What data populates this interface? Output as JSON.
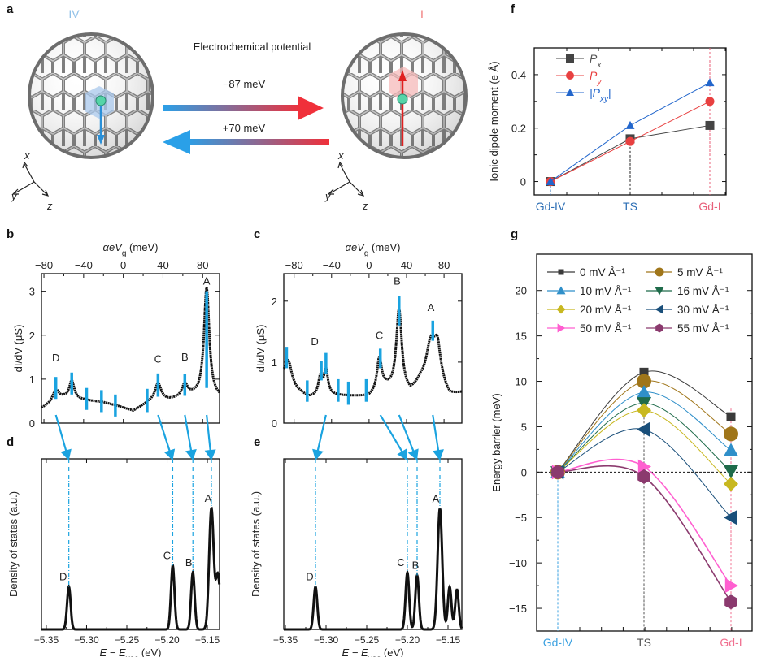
{
  "panel_labels": {
    "a": "a",
    "b": "b",
    "c": "c",
    "d": "d",
    "e": "e",
    "f": "f",
    "g": "g"
  },
  "panel_a": {
    "state_left": "IV",
    "state_right": "I",
    "title": "Electrochemical potential",
    "forward_label": "−87 meV",
    "backward_label": "+70 meV",
    "axis_x": "x",
    "axis_y": "y",
    "axis_z": "z",
    "colors": {
      "left_state": "#8fc0e8",
      "right_state": "#f07a7a",
      "forward_arrow_end": "#f0303a",
      "backward_arrow_end": "#2aa0e8"
    }
  },
  "chart_data": [
    {
      "panel": "b",
      "type": "line",
      "xlabel": {
        "main": "αeV",
        "sub": "g",
        "unit": " (meV)"
      },
      "ylabel": "dI/dV (μS)",
      "xticks": [
        -80,
        -40,
        0,
        40,
        80
      ],
      "xtick_labels": [
        "−80",
        "−40",
        "0",
        "40",
        "80"
      ],
      "yticks": [
        0,
        1,
        2,
        3
      ],
      "ytick_labels": [
        "0",
        "1",
        "2",
        "3"
      ],
      "xlim": [
        -82.5,
        97
      ],
      "ylim": [
        0,
        3.4
      ],
      "baseline": [
        [
          -82.5,
          0.33
        ],
        [
          -60,
          0.55
        ],
        [
          -40,
          0.52
        ],
        [
          -20,
          0.47
        ],
        [
          -5,
          0.38
        ],
        [
          10,
          0.27
        ],
        [
          25,
          0.45
        ],
        [
          45,
          0.5
        ],
        [
          70,
          0.6
        ],
        [
          97,
          0.55
        ]
      ],
      "peaks": [
        [
          -68,
          0.28,
          4
        ],
        [
          -52,
          0.42,
          3
        ],
        [
          35,
          0.42,
          4
        ],
        [
          62,
          0.3,
          3.5
        ],
        [
          84,
          2.5,
          3.2
        ]
      ],
      "markers": [
        [
          -68,
          0.55,
          1.05
        ],
        [
          -52,
          0.65,
          1.15
        ],
        [
          -37,
          0.3,
          0.8
        ],
        [
          -22,
          0.25,
          0.75
        ],
        [
          -8,
          0.15,
          0.65
        ],
        [
          24,
          0.25,
          0.78
        ],
        [
          35,
          0.6,
          1.13
        ],
        [
          62,
          0.62,
          1.12
        ],
        [
          84,
          0.8,
          3.0
        ]
      ],
      "peak_labels": [
        {
          "label": "D",
          "x": -68,
          "y": 1.4
        },
        {
          "label": "C",
          "x": 35,
          "y": 1.38
        },
        {
          "label": "B",
          "x": 62,
          "y": 1.42
        },
        {
          "label": "A",
          "x": 84,
          "y": 3.15
        }
      ]
    },
    {
      "panel": "c",
      "type": "line",
      "xlabel": {
        "main": "αeV",
        "sub": "g",
        "unit": " (meV)"
      },
      "ylabel": "dI/dV (μS)",
      "xticks": [
        -80,
        -40,
        0,
        40,
        80
      ],
      "xtick_labels": [
        "−80",
        "−40",
        "0",
        "40",
        "80"
      ],
      "yticks": [
        0,
        1,
        2
      ],
      "ytick_labels": [
        "0",
        "1",
        "2"
      ],
      "xlim": [
        -91,
        99
      ],
      "ylim": [
        0,
        2.45
      ],
      "baseline": [
        [
          -91,
          0.75
        ],
        [
          -78,
          0.55
        ],
        [
          -65,
          0.42
        ],
        [
          -40,
          0.45
        ],
        [
          0,
          0.42
        ],
        [
          18,
          0.55
        ],
        [
          44,
          0.45
        ],
        [
          55,
          0.62
        ],
        [
          78,
          0.55
        ],
        [
          86,
          0.42
        ],
        [
          99,
          0.48
        ]
      ],
      "peaks": [
        [
          -86,
          0.35,
          4
        ],
        [
          -52,
          0.3,
          2.5
        ],
        [
          -46,
          0.42,
          2.5
        ],
        [
          11,
          0.55,
          3
        ],
        [
          32,
          1.35,
          3.5
        ],
        [
          66,
          0.7,
          6
        ],
        [
          73,
          0.55,
          4
        ]
      ],
      "markers": [
        [
          -88,
          0.9,
          1.25
        ],
        [
          -66,
          0.35,
          0.7
        ],
        [
          -51,
          0.7,
          1.02
        ],
        [
          -46,
          0.8,
          1.15
        ],
        [
          -33,
          0.35,
          0.72
        ],
        [
          -22,
          0.3,
          0.68
        ],
        [
          -3,
          0.35,
          0.72
        ],
        [
          12,
          0.9,
          1.22
        ],
        [
          32,
          1.6,
          2.08
        ],
        [
          68,
          1.35,
          1.68
        ]
      ],
      "peak_labels": [
        {
          "label": "D",
          "x": -58,
          "y": 1.28
        },
        {
          "label": "C",
          "x": 11,
          "y": 1.38
        },
        {
          "label": "B",
          "x": 30,
          "y": 2.27
        },
        {
          "label": "A",
          "x": 66,
          "y": 1.84
        }
      ]
    },
    {
      "panel": "d",
      "type": "line",
      "xlabel": {
        "main": "E − E",
        "sub": "vac",
        "unit": " (eV)"
      },
      "ylabel": "Density of states (a.u.)",
      "xticks": [
        -5.35,
        -5.3,
        -5.25,
        -5.2,
        -5.15
      ],
      "xtick_labels": [
        "−5.35",
        "−5.30",
        "−5.25",
        "−5.20",
        "−5.15"
      ],
      "xlim": [
        -5.356,
        -5.1349
      ],
      "ylim": [
        0,
        1.2
      ],
      "peaks": [
        [
          -5.322,
          0.3,
          0.0022
        ],
        [
          -5.193,
          0.45,
          0.0022
        ],
        [
          -5.168,
          0.4,
          0.0022
        ],
        [
          -5.145,
          0.85,
          0.0028
        ],
        [
          -5.137,
          0.38,
          0.0025
        ],
        [
          -5.131,
          0.2,
          0.002
        ]
      ],
      "peak_labels": [
        {
          "label": "D",
          "x": -5.326
        },
        {
          "label": "C",
          "x": -5.197
        },
        {
          "label": "B",
          "x": -5.17
        },
        {
          "label": "A",
          "x": -5.146
        }
      ]
    },
    {
      "panel": "e",
      "type": "line",
      "xlabel": {
        "main": "E − E",
        "sub": "vac",
        "unit": " (eV)"
      },
      "ylabel": "Density of states (a.u.)",
      "xticks": [
        -5.35,
        -5.3,
        -5.25,
        -5.2,
        -5.15
      ],
      "xtick_labels": [
        "−5.35",
        "−5.30",
        "−5.25",
        "−5.20",
        "−5.15"
      ],
      "xlim": [
        -5.352,
        -5.133
      ],
      "ylim": [
        0,
        1.2
      ],
      "peaks": [
        [
          -5.313,
          0.3,
          0.0022
        ],
        [
          -5.2,
          0.4,
          0.0022
        ],
        [
          -5.188,
          0.38,
          0.0022
        ],
        [
          -5.16,
          0.85,
          0.0028
        ],
        [
          -5.148,
          0.3,
          0.0022
        ],
        [
          -5.139,
          0.28,
          0.0022
        ]
      ],
      "peak_labels": [
        {
          "label": "D",
          "x": -5.317
        },
        {
          "label": "C",
          "x": -5.205
        },
        {
          "label": "B",
          "x": -5.187
        },
        {
          "label": "A",
          "x": -5.162
        }
      ]
    },
    {
      "panel": "f",
      "type": "line",
      "categories": [
        "Gd-IV",
        "TS",
        "Gd-I"
      ],
      "category_colors": [
        "#2d6fb5",
        "#2d6fb5",
        "#e8607a"
      ],
      "ylabel": "Ionic dipole moment (e Å)",
      "yticks": [
        0,
        0.2,
        0.4
      ],
      "ytick_labels": [
        "0",
        "0.2",
        "0.4"
      ],
      "ylim": [
        -0.05,
        0.5
      ],
      "legend": "top-left",
      "series": [
        {
          "name": "P",
          "sub": "x",
          "marker": "square",
          "color": "#444444",
          "values": [
            0,
            0.16,
            0.21
          ]
        },
        {
          "name": "P",
          "sub": "y",
          "marker": "circle",
          "color": "#e84040",
          "values": [
            0,
            0.15,
            0.3
          ]
        },
        {
          "name": "|P",
          "sub": "xy",
          "suffix": "|",
          "marker": "triangle-up",
          "color": "#2266cc",
          "values": [
            0,
            0.21,
            0.37
          ]
        }
      ]
    },
    {
      "panel": "g",
      "type": "line",
      "categories": [
        "Gd-IV",
        "TS",
        "Gd-I"
      ],
      "category_colors": [
        "#3aa0e0",
        "#555555",
        "#f07090"
      ],
      "ylabel": "Energy barrier (meV)",
      "yticks": [
        -15,
        -10,
        -5,
        0,
        5,
        10,
        15,
        20
      ],
      "ytick_labels": [
        "−15",
        "−10",
        "−5",
        "0",
        "5",
        "10",
        "15",
        "20"
      ],
      "ylim": [
        -17.5,
        24
      ],
      "legend": "top",
      "series": [
        {
          "name": "0 mV Å⁻¹",
          "marker": "square",
          "color": "#3a3a3a",
          "values": [
            0,
            11,
            6.1
          ]
        },
        {
          "name": "5 mV Å⁻¹",
          "marker": "circle",
          "color": "#a0761a",
          "values": [
            0,
            10,
            4.2
          ]
        },
        {
          "name": "10 mV Å⁻¹",
          "marker": "triangle-up",
          "color": "#2f8fc9",
          "values": [
            0,
            8.8,
            2.4
          ]
        },
        {
          "name": "16 mV Å⁻¹",
          "marker": "triangle-down",
          "color": "#1f6b4a",
          "values": [
            0,
            7.6,
            0.1
          ]
        },
        {
          "name": "20 mV Å⁻¹",
          "marker": "diamond",
          "color": "#c8b820",
          "values": [
            0,
            6.8,
            -1.3
          ]
        },
        {
          "name": "30 mV Å⁻¹",
          "marker": "triangle-left",
          "color": "#1a4f7a",
          "values": [
            0,
            4.7,
            -5
          ]
        },
        {
          "name": "50 mV Å⁻¹",
          "marker": "triangle-right",
          "color": "#ff5fd0",
          "values": [
            0,
            0.6,
            -12.5
          ]
        },
        {
          "name": "55 mV Å⁻¹",
          "marker": "hexagon",
          "color": "#8b3a6e",
          "values": [
            0,
            -0.5,
            -14.3
          ]
        }
      ]
    }
  ],
  "colors": {
    "marker_blue": "#1aa3e0"
  }
}
